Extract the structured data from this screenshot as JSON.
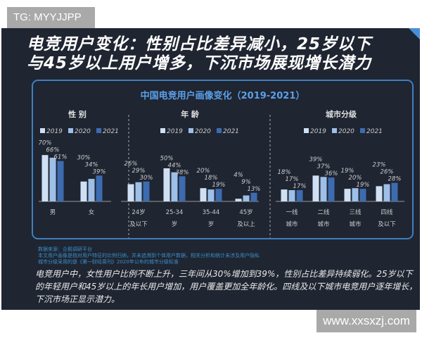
{
  "watermark_top": "TG: MYYJJPP",
  "watermark_bottom": "www.xxsxzj.com",
  "title_line1": "电竞用户变化：性别占比差异减小，25岁以下",
  "title_line2": "与45岁以上用户增多，下沉市场展现增长潜力",
  "chart_title": "中国电竞用户画像变化（2019-2021）",
  "notes": [
    "数据来源：企鹅调研平台",
    "本文用户画像是指对用户特征的比例归纳，并未追溯到个体用户数据，相关分析和统计未涉及用户隐私",
    "城市分级采用的是《第一财经周刊》2020年公布的城市分级标准"
  ],
  "body_text": "电竞用户中，女性用户比例不断上升，三年间从30%增加到39%，性别占比差异持续弱化。25岁以下的年轻用户和45岁以上的年长用户增加，用户覆盖更加全年龄化。四线及以下城市电竞用户逐年增长，下沉市场正显示潜力。",
  "chart_data": [
    {
      "type": "bar",
      "title": "性 别",
      "legend": [
        "2019",
        "2020",
        "2021"
      ],
      "colors": [
        "#cfe0f5",
        "#9dbfe8",
        "#3d6bb0"
      ],
      "categories": [
        [
          "男"
        ],
        [
          "女"
        ]
      ],
      "series": [
        {
          "name": "2019",
          "values": [
            70,
            30
          ]
        },
        {
          "name": "2020",
          "values": [
            66,
            34
          ]
        },
        {
          "name": "2021",
          "values": [
            61,
            39
          ]
        }
      ],
      "unit": "%"
    },
    {
      "type": "bar",
      "title": "年 龄",
      "legend": [
        "2019",
        "2020",
        "2021"
      ],
      "colors": [
        "#cfe0f5",
        "#9dbfe8",
        "#3d6bb0"
      ],
      "categories": [
        [
          "24岁",
          "及以下"
        ],
        [
          "25-34",
          "岁"
        ],
        [
          "35-44",
          "岁"
        ],
        [
          "45岁",
          "及以上"
        ]
      ],
      "series": [
        {
          "name": "2019",
          "values": [
            26,
            50,
            20,
            4
          ]
        },
        {
          "name": "2020",
          "values": [
            29,
            44,
            18,
            9
          ]
        },
        {
          "name": "2021",
          "values": [
            30,
            38,
            19,
            13
          ]
        }
      ],
      "unit": "%"
    },
    {
      "type": "bar",
      "title": "城市分级",
      "legend": [
        "2019",
        "2020",
        "2021"
      ],
      "colors": [
        "#cfe0f5",
        "#9dbfe8",
        "#3d6bb0"
      ],
      "categories": [
        [
          "一线",
          "城市"
        ],
        [
          "二线",
          "城市"
        ],
        [
          "三线",
          "城市"
        ],
        [
          "四线",
          "及以下"
        ]
      ],
      "series": [
        {
          "name": "2019",
          "values": [
            18,
            39,
            19,
            23
          ]
        },
        {
          "name": "2020",
          "values": [
            17,
            37,
            20,
            26
          ]
        },
        {
          "name": "2021",
          "values": [
            17,
            36,
            19,
            28
          ]
        }
      ],
      "unit": "%"
    }
  ]
}
